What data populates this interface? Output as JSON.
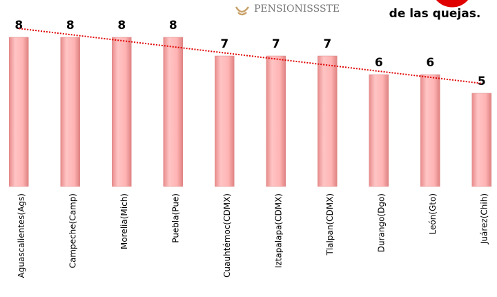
{
  "header": {
    "logo": "PENSIONISSSTE",
    "note": "de las quejas."
  },
  "chart_data": {
    "type": "bar",
    "categories": [
      "Aguascalientes(Ags)",
      "Campeche(Camp)",
      "Morelia(Mich)",
      "Puebla(Pue)",
      "Cuauhtémoc(CDMX)",
      "Iztapalapa(CDMX)",
      "Tlalpan(CDMX)",
      "Durango(Dgo)",
      "León(Gto)",
      "Juárez(Chih)"
    ],
    "values": [
      8,
      8,
      8,
      8,
      7,
      7,
      7,
      6,
      6,
      5
    ],
    "color": "#ffb0b0",
    "trendline": true,
    "trendline_color": "#e00000",
    "ylim": [
      0,
      10
    ]
  }
}
